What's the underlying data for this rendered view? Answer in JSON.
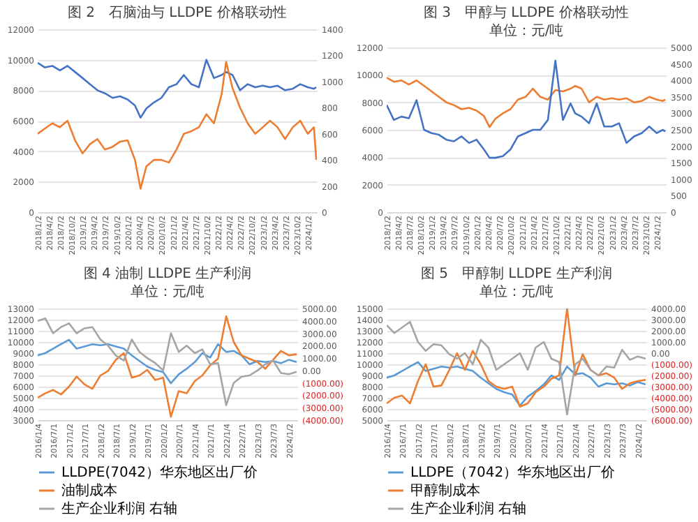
{
  "chart_data": [
    {
      "type": "line",
      "title": "图 2　石脑油与 LLDPE 价格联动性",
      "x": [
        "2018-01-02",
        "2018-03-01",
        "2018-05-01",
        "2018-07-01",
        "2018-09-01",
        "2018-11-01",
        "2019-01-01",
        "2019-03-01",
        "2019-05-01",
        "2019-07-01",
        "2019-09-01",
        "2019-11-01",
        "2020-01-01",
        "2020-03-01",
        "2020-04-15",
        "2020-06-01",
        "2020-08-01",
        "2020-10-01",
        "2020-12-01",
        "2021-02-01",
        "2021-04-01",
        "2021-06-01",
        "2021-08-01",
        "2021-10-01",
        "2021-12-01",
        "2022-02-01",
        "2022-03-10",
        "2022-05-01",
        "2022-07-01",
        "2022-09-01",
        "2022-11-01",
        "2023-01-01",
        "2023-03-01",
        "2023-05-01",
        "2023-07-01",
        "2023-09-01",
        "2023-11-01",
        "2024-01-01",
        "2024-02-20",
        "2024-03-10"
      ],
      "series": [
        {
          "color": "#4472c4",
          "values": [
            9800,
            9500,
            9600,
            9300,
            9600,
            9200,
            8800,
            8400,
            8000,
            7800,
            7500,
            7600,
            7400,
            7000,
            6200,
            6800,
            7200,
            7500,
            8200,
            8400,
            9000,
            8400,
            8200,
            10000,
            8800,
            9000,
            9200,
            9000,
            8000,
            8400,
            8200,
            8300,
            8200,
            8300,
            8000,
            8100,
            8400,
            8200,
            8100,
            8200
          ]
        },
        {
          "color": "#ed7d31",
          "axis": "y2",
          "values": [
            600,
            640,
            680,
            650,
            700,
            550,
            450,
            520,
            560,
            480,
            500,
            540,
            550,
            400,
            180,
            350,
            400,
            400,
            380,
            480,
            600,
            620,
            650,
            750,
            680,
            900,
            1150,
            950,
            800,
            680,
            600,
            650,
            700,
            650,
            560,
            650,
            700,
            600,
            650,
            400
          ]
        }
      ],
      "xlim": [
        "2018-01-02",
        "2024-03-15"
      ],
      "xticks": [
        {
          "value": "2018-01-02",
          "label": "2018/1/2"
        },
        {
          "value": "2018-04-02",
          "label": "2018/4/2"
        },
        {
          "value": "2018-07-02",
          "label": "2018/7/2"
        },
        {
          "value": "2018-10-02",
          "label": "2018/10/2"
        },
        {
          "value": "2019-01-02",
          "label": "2019/1/2"
        },
        {
          "value": "2019-04-02",
          "label": "2019/4/2"
        },
        {
          "value": "2019-07-02",
          "label": "2019/7/2"
        },
        {
          "value": "2019-10-02",
          "label": "2019/10/2"
        },
        {
          "value": "2020-01-02",
          "label": "2020/1/2"
        },
        {
          "value": "2020-04-02",
          "label": "2020/4/2"
        },
        {
          "value": "2020-07-02",
          "label": "2020/7/2"
        },
        {
          "value": "2020-10-02",
          "label": "2020/10/2"
        },
        {
          "value": "2021-01-02",
          "label": "2021/1/2"
        },
        {
          "value": "2021-04-02",
          "label": "2021/4/2"
        },
        {
          "value": "2021-07-02",
          "label": "2021/7/2"
        },
        {
          "value": "2021-10-02",
          "label": "2021/10/2"
        },
        {
          "value": "2022-01-02",
          "label": "2022/1/2"
        },
        {
          "value": "2022-04-02",
          "label": "2022/4/2"
        },
        {
          "value": "2022-07-02",
          "label": "2022/7/2"
        },
        {
          "value": "2022-10-02",
          "label": "2022/10/2"
        },
        {
          "value": "2023-01-02",
          "label": "2023/1/2"
        },
        {
          "value": "2023-04-02",
          "label": "2023/4/2"
        },
        {
          "value": "2023-07-02",
          "label": "2023/7/2"
        },
        {
          "value": "2023-10-02",
          "label": "2023/10/2"
        },
        {
          "value": "2024-01-02",
          "label": "2024/1/2"
        }
      ],
      "ylim": [
        0,
        12000
      ],
      "yticks": [
        0,
        2000,
        4000,
        6000,
        8000,
        10000,
        12000
      ],
      "y2lim": [
        0,
        1400
      ],
      "y2ticks": [
        0,
        200,
        400,
        600,
        800,
        1000,
        1200,
        1400
      ],
      "grid": "y"
    },
    {
      "type": "line",
      "title": "图 3　甲醇与 LLDPE 价格联动性",
      "subtitle": "单位：元/吨",
      "x": [
        "2018-01-02",
        "2018-03-01",
        "2018-05-01",
        "2018-07-01",
        "2018-09-01",
        "2018-11-01",
        "2019-01-01",
        "2019-03-01",
        "2019-05-01",
        "2019-07-01",
        "2019-09-01",
        "2019-11-01",
        "2020-01-01",
        "2020-03-01",
        "2020-04-15",
        "2020-06-01",
        "2020-08-01",
        "2020-10-01",
        "2020-12-01",
        "2021-02-01",
        "2021-04-01",
        "2021-06-01",
        "2021-08-01",
        "2021-10-01",
        "2021-12-01",
        "2022-02-01",
        "2022-03-10",
        "2022-05-01",
        "2022-07-01",
        "2022-09-01",
        "2022-11-01",
        "2023-01-01",
        "2023-03-01",
        "2023-05-01",
        "2023-07-01",
        "2023-09-01",
        "2023-11-01",
        "2024-01-01",
        "2024-02-20",
        "2024-03-10"
      ],
      "series": [
        {
          "color": "#ed7d31",
          "values": [
            9800,
            9500,
            9600,
            9300,
            9600,
            9200,
            8800,
            8400,
            8000,
            7800,
            7500,
            7600,
            7400,
            7000,
            6200,
            6800,
            7200,
            7500,
            8200,
            8400,
            9000,
            8400,
            8200,
            8900,
            8800,
            9000,
            9200,
            9000,
            8000,
            8400,
            8200,
            8300,
            8200,
            8300,
            8000,
            8100,
            8400,
            8200,
            8100,
            8200
          ]
        },
        {
          "color": "#4472c4",
          "axis": "y2",
          "values": [
            3250,
            2800,
            2900,
            2850,
            3400,
            2500,
            2400,
            2350,
            2200,
            2150,
            2300,
            2100,
            2200,
            1900,
            1650,
            1650,
            1700,
            1900,
            2300,
            2400,
            2500,
            2500,
            2800,
            4600,
            2800,
            3300,
            3000,
            2900,
            2700,
            3300,
            2600,
            2600,
            2700,
            2100,
            2300,
            2400,
            2600,
            2400,
            2500,
            2450
          ]
        }
      ],
      "xlim": [
        "2018-01-02",
        "2024-03-15"
      ],
      "xticks": [
        {
          "value": "2018-01-02",
          "label": "2018/1/2"
        },
        {
          "value": "2018-04-02",
          "label": "2018/4/2"
        },
        {
          "value": "2018-07-02",
          "label": "2018/7/2"
        },
        {
          "value": "2018-10-02",
          "label": "2018/10/2"
        },
        {
          "value": "2019-01-02",
          "label": "2019/1/2"
        },
        {
          "value": "2019-04-02",
          "label": "2019/4/2"
        },
        {
          "value": "2019-07-02",
          "label": "2019/7/2"
        },
        {
          "value": "2019-10-02",
          "label": "2019/10/2"
        },
        {
          "value": "2020-01-02",
          "label": "2020/1/2"
        },
        {
          "value": "2020-04-02",
          "label": "2020/4/2"
        },
        {
          "value": "2020-07-02",
          "label": "2020/7/2"
        },
        {
          "value": "2020-10-02",
          "label": "2020/10/2"
        },
        {
          "value": "2021-01-02",
          "label": "2021/1/2"
        },
        {
          "value": "2021-04-02",
          "label": "2021/4/2"
        },
        {
          "value": "2021-07-02",
          "label": "2021/7/2"
        },
        {
          "value": "2021-10-02",
          "label": "2021/10/2"
        },
        {
          "value": "2022-01-02",
          "label": "2022/1/2"
        },
        {
          "value": "2022-04-02",
          "label": "2022/4/2"
        },
        {
          "value": "2022-07-02",
          "label": "2022/7/2"
        },
        {
          "value": "2022-10-02",
          "label": "2022/10/2"
        },
        {
          "value": "2023-01-02",
          "label": "2023/1/2"
        },
        {
          "value": "2023-04-02",
          "label": "2023/4/2"
        },
        {
          "value": "2023-07-02",
          "label": "2023/7/2"
        },
        {
          "value": "2023-10-02",
          "label": "2023/10/2"
        },
        {
          "value": "2024-01-02",
          "label": "2024/1/2"
        }
      ],
      "ylim": [
        0,
        12000
      ],
      "yticks": [
        0,
        2000,
        4000,
        6000,
        8000,
        10000,
        12000
      ],
      "y2lim": [
        0,
        5000
      ],
      "y2ticks": [
        0,
        500,
        1000,
        1500,
        2000,
        2500,
        3000,
        3500,
        4000,
        4500,
        5000
      ],
      "grid": "y"
    },
    {
      "type": "line",
      "title": "图 4 油制 LLDPE 生产利润",
      "subtitle": "单位：元/吨",
      "x": [
        "2016-01-04",
        "2016-04-01",
        "2016-07-01",
        "2016-10-01",
        "2017-01-02",
        "2017-04-01",
        "2017-07-01",
        "2017-10-01",
        "2018-01-02",
        "2018-04-01",
        "2018-07-01",
        "2018-10-01",
        "2019-01-02",
        "2019-04-01",
        "2019-07-01",
        "2019-10-01",
        "2020-01-02",
        "2020-04-01",
        "2020-07-01",
        "2020-10-01",
        "2021-01-04",
        "2021-04-01",
        "2021-07-01",
        "2021-10-01",
        "2022-01-04",
        "2022-04-01",
        "2022-07-01",
        "2022-10-01",
        "2023-01-03",
        "2023-04-03",
        "2023-07-03",
        "2023-10-02",
        "2024-01-02",
        "2024-04-01"
      ],
      "series": [
        {
          "name": "LLDPE(7042）华东地区出厂价",
          "color": "#5b9bd5",
          "values": [
            8800,
            9000,
            9400,
            9800,
            10200,
            9400,
            9600,
            9800,
            9700,
            9800,
            9600,
            9400,
            8800,
            8300,
            7800,
            7500,
            7300,
            6300,
            7100,
            7600,
            8200,
            9000,
            8600,
            9800,
            9100,
            9200,
            8800,
            8000,
            8300,
            8200,
            8300,
            8100,
            8400,
            8200
          ]
        },
        {
          "name": "油制成本",
          "color": "#ed7d31",
          "values": [
            5000,
            5400,
            5700,
            5300,
            6000,
            6900,
            6200,
            5800,
            7000,
            7400,
            8400,
            9000,
            6800,
            7000,
            7500,
            6600,
            6800,
            3300,
            5600,
            5400,
            6500,
            7000,
            7900,
            8500,
            12300,
            10000,
            8800,
            8500,
            8200,
            7600,
            8400,
            9200,
            8800,
            8900
          ]
        },
        {
          "name": "生产企业利润 右轴",
          "color": "#a5a5a5",
          "axis": "y2",
          "values": [
            4000,
            4200,
            3000,
            3500,
            3800,
            3000,
            3400,
            3500,
            2500,
            2000,
            1200,
            800,
            2500,
            1500,
            1000,
            600,
            0,
            3000,
            1500,
            2000,
            1400,
            1700,
            500,
            600,
            -2800,
            -1000,
            -500,
            -400,
            0,
            500,
            800,
            -200,
            -300,
            -100
          ]
        }
      ],
      "xlim": [
        "2016-01-04",
        "2024-04-10"
      ],
      "xticks": [
        {
          "value": "2016-01-04",
          "label": "2016/1/4"
        },
        {
          "value": "2016-07-01",
          "label": "2016/7/1"
        },
        {
          "value": "2017-01-02",
          "label": "2017/1/2"
        },
        {
          "value": "2017-07-01",
          "label": "2017/7/1"
        },
        {
          "value": "2018-01-02",
          "label": "2018/1/2"
        },
        {
          "value": "2018-07-01",
          "label": "2018/7/1"
        },
        {
          "value": "2019-01-02",
          "label": "2019/1/2"
        },
        {
          "value": "2019-07-01",
          "label": "2019/7/1"
        },
        {
          "value": "2020-01-02",
          "label": "2020/1/2"
        },
        {
          "value": "2020-07-01",
          "label": "2020/7/1"
        },
        {
          "value": "2021-01-04",
          "label": "2021/1/4"
        },
        {
          "value": "2021-07-01",
          "label": "2021/7/1"
        },
        {
          "value": "2022-01-04",
          "label": "2022/1/4"
        },
        {
          "value": "2022-07-01",
          "label": "2022/7/1"
        },
        {
          "value": "2023-01-03",
          "label": "2023/1/3"
        },
        {
          "value": "2023-07-03",
          "label": "2023/7/3"
        },
        {
          "value": "2024-01-02",
          "label": "2024/1/2"
        }
      ],
      "ylim": [
        3000,
        13000
      ],
      "yticks": [
        3000,
        4000,
        5000,
        6000,
        7000,
        8000,
        9000,
        10000,
        11000,
        12000,
        13000
      ],
      "y2lim": [
        -4000,
        5000
      ],
      "y2ticks": [
        {
          "value": -4000,
          "label": "(4000.00)"
        },
        {
          "value": -3000,
          "label": "(3000.00)"
        },
        {
          "value": -2000,
          "label": "(2000.00)"
        },
        {
          "value": -1000,
          "label": "(1000.00)"
        },
        {
          "value": 0,
          "label": "0.00"
        },
        {
          "value": 1000,
          "label": "1000.00"
        },
        {
          "value": 2000,
          "label": "2000.00"
        },
        {
          "value": 3000,
          "label": "3000.00"
        },
        {
          "value": 4000,
          "label": "4000.00"
        },
        {
          "value": 5000,
          "label": "5000.00"
        }
      ],
      "grid": "y",
      "legend": "bottom"
    },
    {
      "type": "line",
      "title": "图 5　甲醇制 LLDPE 生产利润",
      "subtitle": "单位：元/吨",
      "x": [
        "2016-01-04",
        "2016-04-01",
        "2016-07-01",
        "2016-10-01",
        "2017-01-02",
        "2017-04-01",
        "2017-07-01",
        "2017-10-01",
        "2018-01-02",
        "2018-04-01",
        "2018-07-01",
        "2018-10-01",
        "2019-01-02",
        "2019-04-01",
        "2019-07-01",
        "2019-10-01",
        "2020-01-02",
        "2020-04-01",
        "2020-07-01",
        "2020-10-01",
        "2021-01-04",
        "2021-04-01",
        "2021-07-01",
        "2021-10-01",
        "2022-01-04",
        "2022-04-01",
        "2022-07-01",
        "2022-10-01",
        "2023-01-03",
        "2023-04-03",
        "2023-07-03",
        "2023-10-02",
        "2024-01-02",
        "2024-04-01"
      ],
      "series": [
        {
          "name": "LLDPE（7042）华东地区出厂价",
          "color": "#5b9bd5",
          "values": [
            8800,
            9000,
            9400,
            9800,
            10200,
            9400,
            9600,
            9800,
            9700,
            9800,
            9600,
            9400,
            8800,
            8300,
            7800,
            7500,
            7300,
            6300,
            7100,
            7600,
            8200,
            9000,
            8600,
            9800,
            9100,
            9200,
            8800,
            8000,
            8300,
            8200,
            8300,
            8100,
            8400,
            8200
          ]
        },
        {
          "name": "甲醇制成本",
          "color": "#ed7d31",
          "values": [
            6500,
            7000,
            7200,
            6500,
            8500,
            10000,
            8000,
            8100,
            9500,
            11000,
            9500,
            11200,
            10000,
            8500,
            8000,
            7800,
            8000,
            6200,
            6500,
            7500,
            8000,
            8700,
            9000,
            15000,
            9000,
            10900,
            9500,
            9000,
            9200,
            8800,
            7800,
            8300,
            8500,
            8600
          ]
        },
        {
          "name": "生产企业利润 右轴",
          "color": "#a5a5a5",
          "axis": "y2",
          "values": [
            2500,
            1800,
            2300,
            2800,
            1000,
            200,
            800,
            700,
            -100,
            -500,
            0,
            -1000,
            1200,
            500,
            -1500,
            -1000,
            -500,
            0,
            -1500,
            500,
            1000,
            -500,
            -800,
            -5500,
            -1000,
            -500,
            -1500,
            -2000,
            -1200,
            -1300,
            300,
            -600,
            -300,
            -500
          ]
        }
      ],
      "xlim": [
        "2016-01-04",
        "2024-04-10"
      ],
      "xticks": [
        {
          "value": "2016-01-04",
          "label": "2016/1/4"
        },
        {
          "value": "2016-07-01",
          "label": "2016/7/1"
        },
        {
          "value": "2017-01-02",
          "label": "2017/1/2"
        },
        {
          "value": "2017-07-01",
          "label": "2017/7/1"
        },
        {
          "value": "2018-01-02",
          "label": "2018/1/2"
        },
        {
          "value": "2018-07-01",
          "label": "2018/7/1"
        },
        {
          "value": "2019-01-02",
          "label": "2019/1/2"
        },
        {
          "value": "2019-07-01",
          "label": "2019/7/1"
        },
        {
          "value": "2020-01-02",
          "label": "2020/1/2"
        },
        {
          "value": "2020-07-01",
          "label": "2020/7/1"
        },
        {
          "value": "2021-01-04",
          "label": "2021/1/4"
        },
        {
          "value": "2021-07-01",
          "label": "2021/7/1"
        },
        {
          "value": "2022-01-04",
          "label": "2022/1/4"
        },
        {
          "value": "2022-07-01",
          "label": "2022/7/1"
        },
        {
          "value": "2023-01-03",
          "label": "2023/1/3"
        },
        {
          "value": "2023-07-03",
          "label": "2023/7/3"
        },
        {
          "value": "2024-01-02",
          "label": "2024/1/2"
        }
      ],
      "ylim": [
        5000,
        15000
      ],
      "yticks": [
        5000,
        6000,
        7000,
        8000,
        9000,
        10000,
        11000,
        12000,
        13000,
        14000,
        15000
      ],
      "y2lim": [
        -6000,
        4000
      ],
      "y2ticks": [
        {
          "value": -6000,
          "label": "(6000.00)"
        },
        {
          "value": -5000,
          "label": "(5000.00)"
        },
        {
          "value": -4000,
          "label": "(4000.00)"
        },
        {
          "value": -3000,
          "label": "(3000.00)"
        },
        {
          "value": -2000,
          "label": "(2000.00)"
        },
        {
          "value": -1000,
          "label": "(1000.00)"
        },
        {
          "value": 0,
          "label": "0.00"
        },
        {
          "value": 1000,
          "label": "1000.00"
        },
        {
          "value": 2000,
          "label": "2000.00"
        },
        {
          "value": 3000,
          "label": "3000.00"
        },
        {
          "value": 4000,
          "label": "4000.00"
        }
      ],
      "grid": "y",
      "legend": "bottom"
    }
  ]
}
